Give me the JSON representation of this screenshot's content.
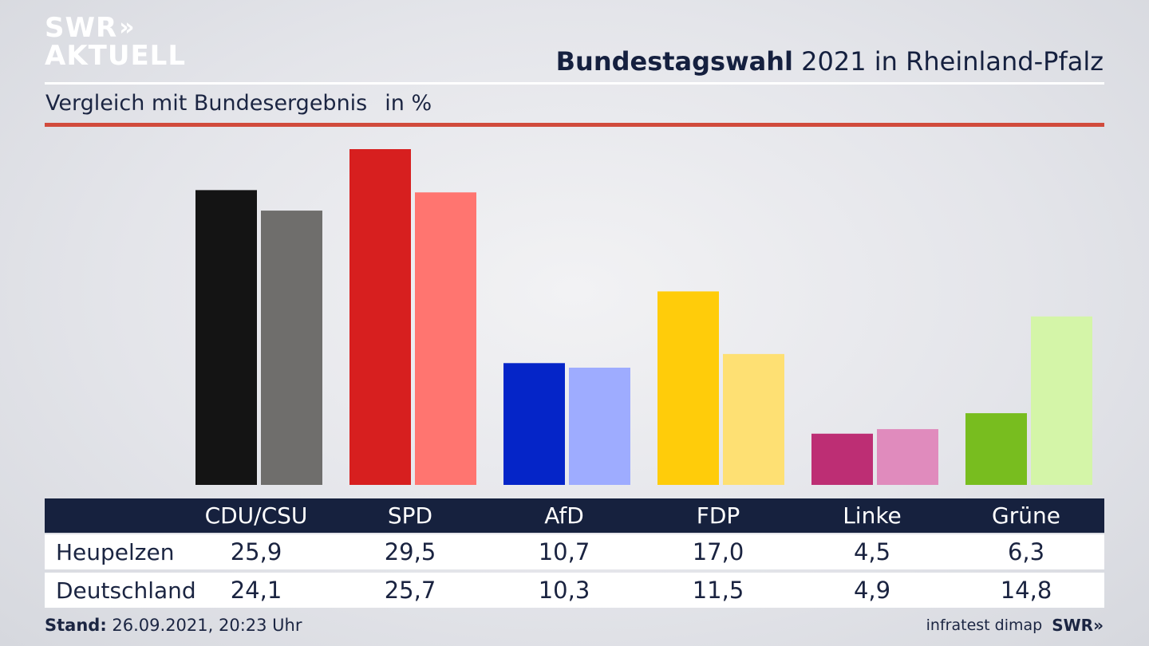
{
  "logo": {
    "line1": "SWR",
    "arrows": "»",
    "line2": "AKTUELL"
  },
  "header": {
    "title_bold": "Bundestagswahl",
    "title_rest": " 2021 in Rheinland-Pfalz"
  },
  "subtitle": {
    "text": "Vergleich mit Bundesergebnis",
    "unit": "in %"
  },
  "colors": {
    "accent_red": "#d14b3c",
    "header_navy": "#16213e"
  },
  "chart_data": {
    "type": "bar",
    "categories": [
      "CDU/CSU",
      "SPD",
      "AfD",
      "FDP",
      "Linke",
      "Grüne"
    ],
    "series": [
      {
        "name": "Heupelzen",
        "values": [
          25.9,
          29.5,
          10.7,
          17.0,
          4.5,
          6.3
        ],
        "colors": [
          "#141414",
          "#d71f1f",
          "#0525c8",
          "#ffcc0a",
          "#bd2e74",
          "#78bd1f"
        ]
      },
      {
        "name": "Deutschland",
        "values": [
          24.1,
          25.7,
          10.3,
          11.5,
          4.9,
          14.8
        ],
        "colors": [
          "#6f6e6c",
          "#ff7570",
          "#9eacff",
          "#fee073",
          "#e08bbd",
          "#d4f5a8"
        ]
      }
    ],
    "ylim": [
      0,
      29.5
    ],
    "grid": false,
    "legend": "table-below"
  },
  "table": {
    "headers": [
      "CDU/CSU",
      "SPD",
      "AfD",
      "FDP",
      "Linke",
      "Grüne"
    ],
    "rows": [
      {
        "label": "Heupelzen",
        "values": [
          "25,9",
          "29,5",
          "10,7",
          "17,0",
          "4,5",
          "6,3"
        ]
      },
      {
        "label": "Deutschland",
        "values": [
          "24,1",
          "25,7",
          "10,3",
          "11,5",
          "4,9",
          "14,8"
        ]
      }
    ]
  },
  "footer": {
    "stand_label": "Stand:",
    "stand_value": " 26.09.2021, 20:23 Uhr",
    "source": "infratest dimap",
    "brand": "SWR»"
  }
}
